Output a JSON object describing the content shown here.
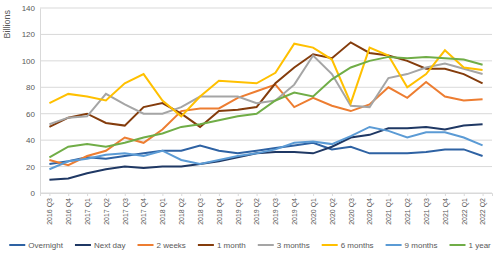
{
  "chart_data": {
    "type": "line",
    "y_label": "Billions",
    "categories": [
      "2016 Q3",
      "2016 Q4",
      "2017 Q1",
      "2017 Q2",
      "2017 Q3",
      "2017 Q4",
      "2018 Q1",
      "2018 Q2",
      "2018 Q3",
      "2018 Q4",
      "2019 Q1",
      "2019 Q2",
      "2019 Q3",
      "2019 Q4",
      "2020 Q1",
      "2020 Q2",
      "2020 Q3",
      "2020 Q4",
      "2021 Q1",
      "2021 Q2",
      "2021 Q3",
      "2021 Q4",
      "2022 Q1",
      "2022 Q2"
    ],
    "series": [
      {
        "name": "Overnight",
        "color": "#2e62a3",
        "values": [
          22,
          24,
          27,
          26,
          28,
          30,
          32,
          32,
          36,
          32,
          30,
          32,
          34,
          36,
          38,
          33,
          35,
          30,
          30,
          30,
          31,
          33,
          33,
          28
        ]
      },
      {
        "name": "Next day",
        "color": "#1f3864",
        "values": [
          10,
          11,
          15,
          18,
          20,
          19,
          20,
          20,
          22,
          24,
          27,
          30,
          31,
          31,
          30,
          35,
          42,
          44,
          49,
          49,
          50,
          48,
          51,
          52
        ]
      },
      {
        "name": "2 weeks",
        "color": "#ed7d31",
        "values": [
          25,
          21,
          28,
          32,
          42,
          38,
          48,
          62,
          64,
          64,
          72,
          77,
          82,
          65,
          72,
          66,
          62,
          67,
          80,
          72,
          84,
          73,
          70,
          71
        ]
      },
      {
        "name": "1 month",
        "color": "#843c0c",
        "values": [
          50,
          57,
          60,
          53,
          51,
          65,
          68,
          60,
          50,
          62,
          63,
          65,
          83,
          95,
          105,
          102,
          114,
          106,
          104,
          100,
          94,
          94,
          90,
          83
        ]
      },
      {
        "name": "3 months",
        "color": "#a5a5a5",
        "values": [
          52,
          57,
          58,
          75,
          67,
          60,
          60,
          65,
          73,
          73,
          73,
          68,
          70,
          82,
          104,
          90,
          66,
          65,
          87,
          90,
          95,
          98,
          94,
          90
        ]
      },
      {
        "name": "6 months",
        "color": "#ffc000",
        "values": [
          68,
          75,
          73,
          70,
          83,
          90,
          70,
          58,
          73,
          85,
          84,
          83,
          91,
          113,
          110,
          101,
          68,
          110,
          104,
          80,
          90,
          108,
          95,
          93
        ]
      },
      {
        "name": "9 months",
        "color": "#5b9bd5",
        "values": [
          18,
          24,
          26,
          29,
          30,
          28,
          32,
          25,
          22,
          25,
          28,
          30,
          33,
          38,
          39,
          37,
          43,
          50,
          47,
          42,
          46,
          46,
          42,
          36
        ]
      },
      {
        "name": "1 year",
        "color": "#70ad47",
        "values": [
          27,
          35,
          37,
          35,
          38,
          42,
          45,
          50,
          52,
          55,
          58,
          60,
          70,
          76,
          73,
          86,
          95,
          100,
          103,
          102,
          103,
          102,
          101,
          97
        ]
      }
    ],
    "ylim": [
      0,
      140
    ],
    "yticks": [
      0,
      20,
      40,
      60,
      80,
      100,
      120,
      140
    ],
    "grid": true,
    "legend": "bottom"
  }
}
